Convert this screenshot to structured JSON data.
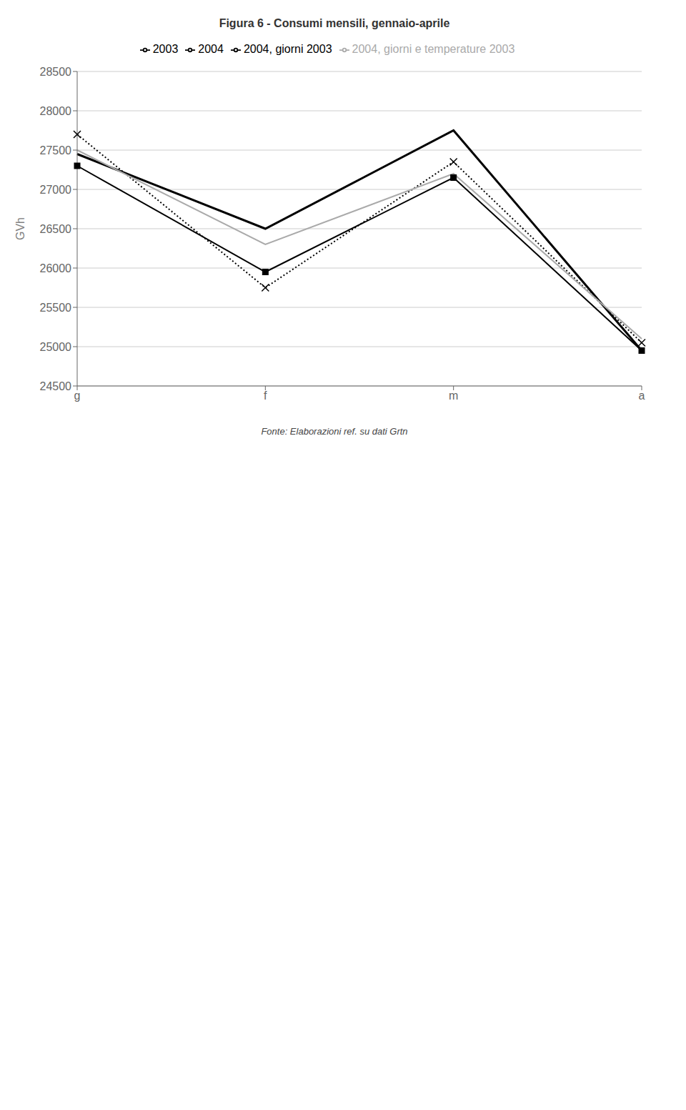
{
  "chart_data": {
    "type": "line",
    "title": "Figura 6 - Consumi mensili, gennaio-aprile",
    "ylabel": "GVh",
    "annotations": [
      "Fonte: Elaborazioni ref. su dati Grtn"
    ],
    "categories": [
      "g",
      "f",
      "m",
      "a"
    ],
    "series": [
      {
        "name": "2004",
        "color": "#000000",
        "values": [
          27450,
          26500,
          27750,
          24950
        ]
      },
      {
        "name": "2003",
        "color": "#000000",
        "marker": "square",
        "values": [
          27300,
          25950,
          27150,
          24950
        ]
      },
      {
        "name": "2004, giorni 2003",
        "color": "#000000",
        "marker": "x",
        "line_style": "dotted",
        "values": [
          27700,
          25750,
          27350,
          25050
        ]
      },
      {
        "name": "2004, giorni e temperature 2003",
        "color": "#aaaaaa",
        "values": [
          27500,
          26300,
          27200,
          25100
        ]
      }
    ],
    "ylim": [
      24500,
      28500
    ],
    "yticks": [
      24500,
      25000,
      25500,
      26000,
      26500,
      27000,
      27500,
      28000,
      28500
    ],
    "grid": true,
    "legend": "top"
  }
}
